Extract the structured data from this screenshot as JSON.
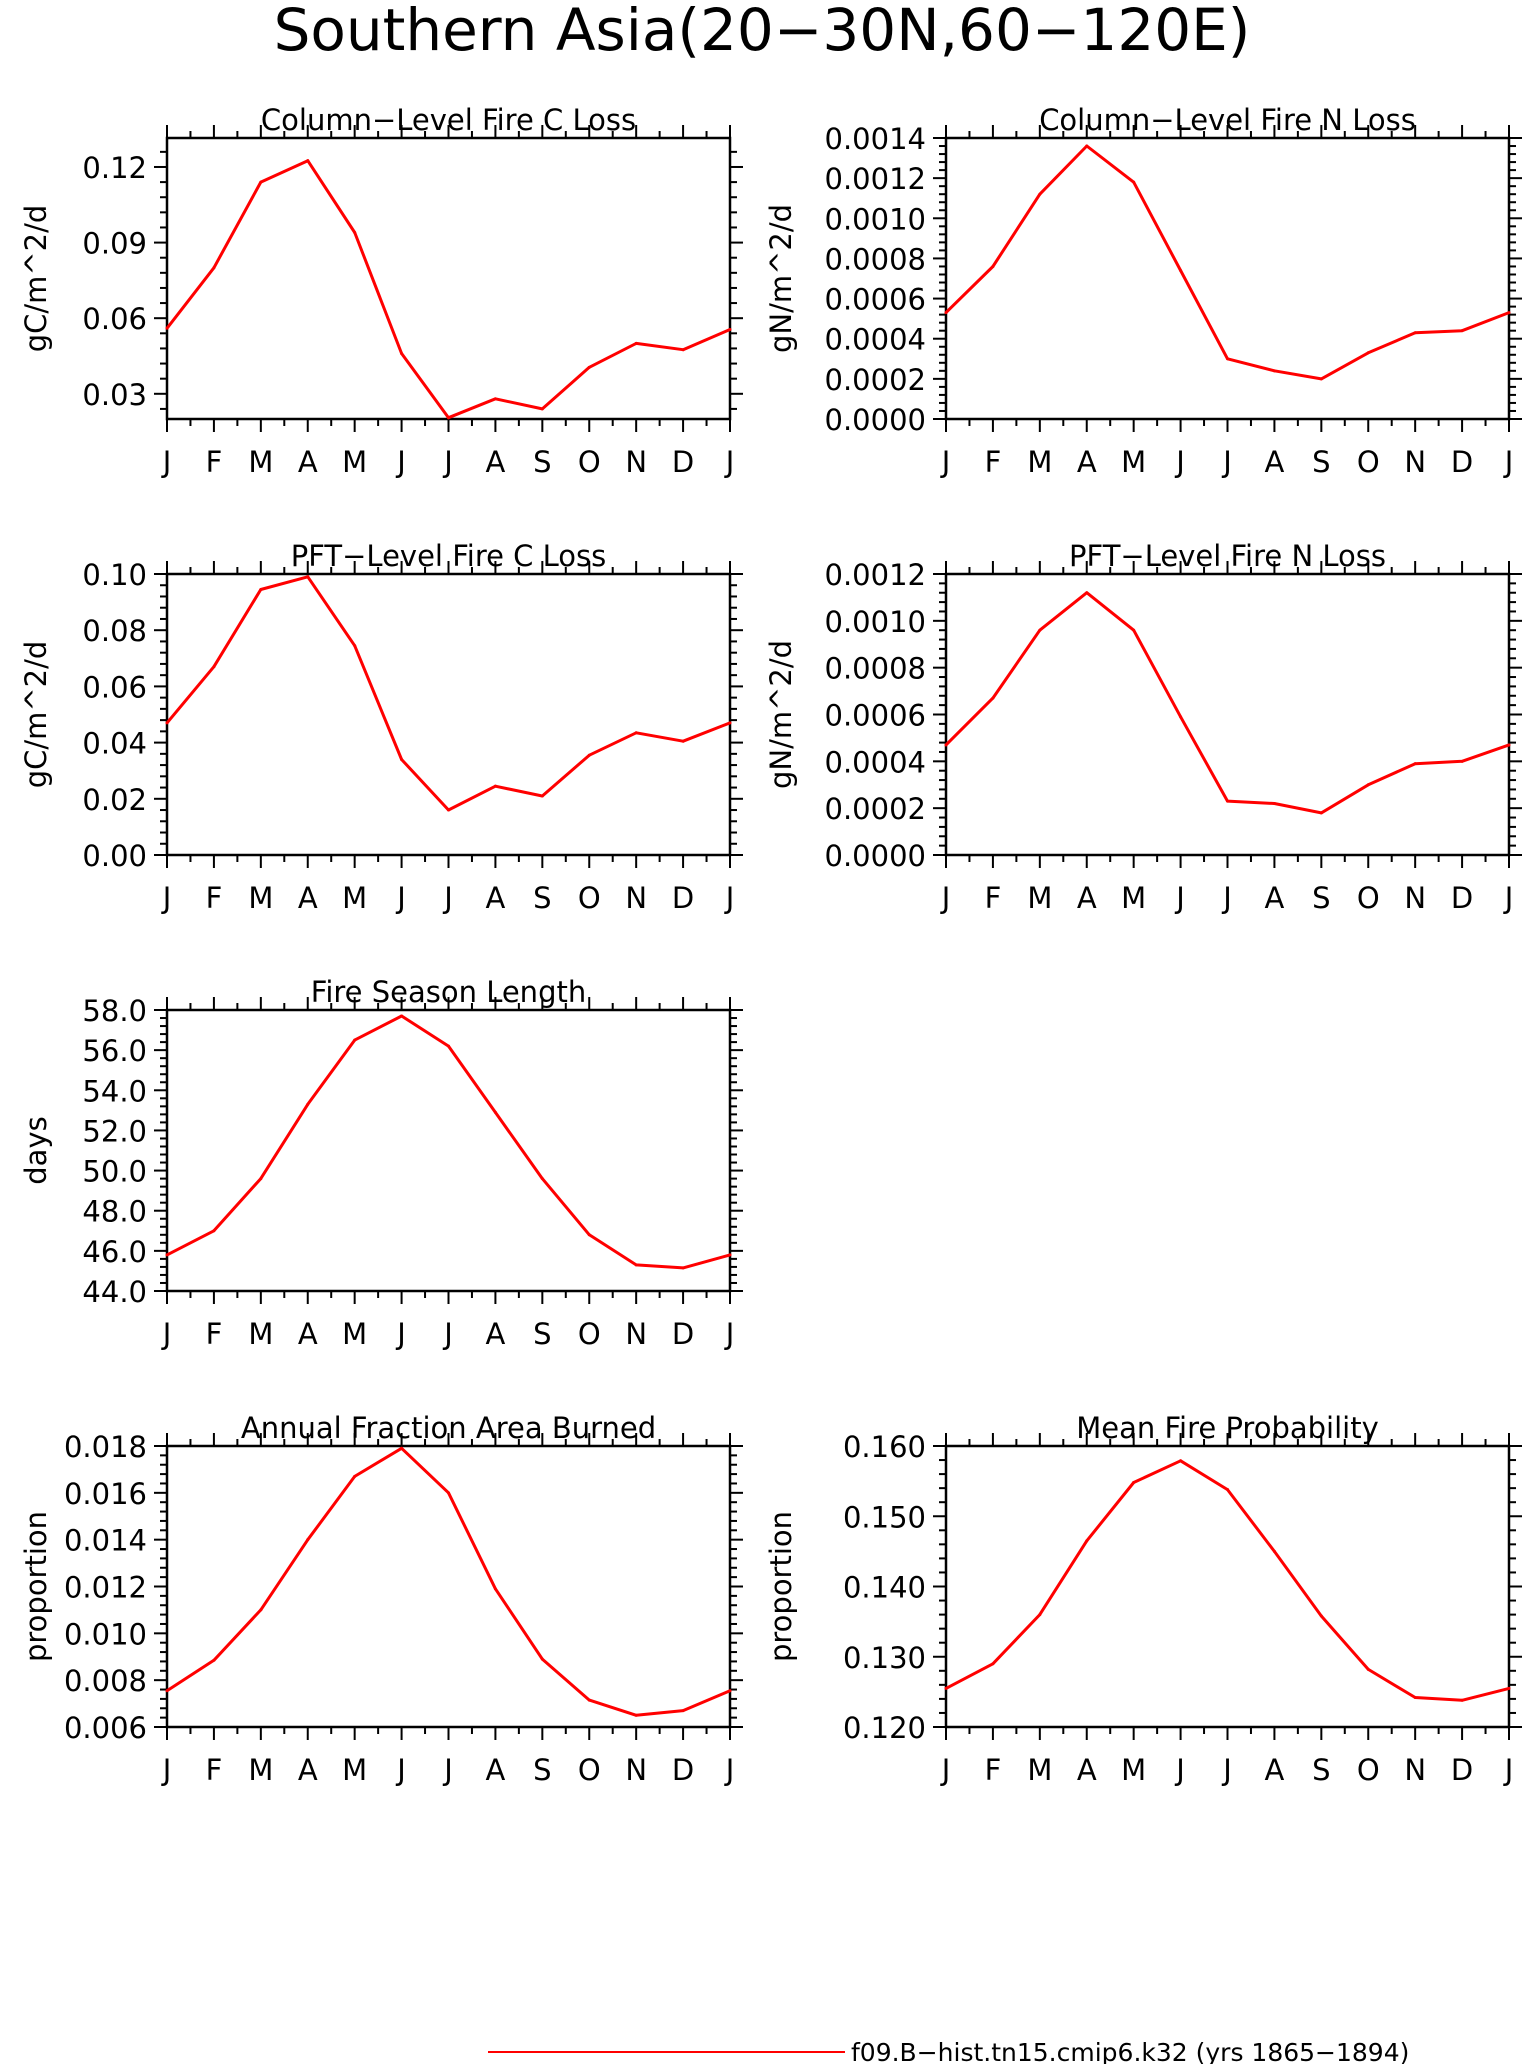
{
  "figure": {
    "title": "Southern Asia(20−30N,60−120E)",
    "line_color": "#ff0000",
    "legend_label": "f09.B−hist.tn15.cmip6.k32 (yrs 1865−1894)"
  },
  "chart_data": [
    {
      "id": "col-c",
      "type": "line",
      "title": "Column−Level Fire C Loss",
      "ylabel": "gC/m^2/d",
      "categories": [
        "J",
        "F",
        "M",
        "A",
        "M",
        "J",
        "J",
        "A",
        "S",
        "O",
        "N",
        "D",
        "J"
      ],
      "yticks": [
        "0.03",
        "0.06",
        "0.09",
        "0.12"
      ],
      "ytick_values": [
        0.03,
        0.06,
        0.09,
        0.12
      ],
      "ylim": [
        0.02,
        0.1315
      ],
      "series": [
        {
          "values": [
            0.056,
            0.08,
            0.114,
            0.1225,
            0.094,
            0.046,
            0.0205,
            0.028,
            0.024,
            0.0405,
            0.05,
            0.0475,
            0.0555
          ]
        }
      ]
    },
    {
      "id": "col-n",
      "type": "line",
      "title": "Column−Level Fire N Loss",
      "ylabel": "gN/m^2/d",
      "categories": [
        "J",
        "F",
        "M",
        "A",
        "M",
        "J",
        "J",
        "A",
        "S",
        "O",
        "N",
        "D",
        "J"
      ],
      "yticks": [
        "0.0000",
        "0.0002",
        "0.0004",
        "0.0006",
        "0.0008",
        "0.0010",
        "0.0012",
        "0.0014"
      ],
      "ytick_values": [
        0.0,
        0.0002,
        0.0004,
        0.0006,
        0.0008,
        0.001,
        0.0012,
        0.0014
      ],
      "ylim": [
        0.0,
        0.0014
      ],
      "series": [
        {
          "values": [
            0.00053,
            0.00076,
            0.00112,
            0.00136,
            0.00118,
            0.00074,
            0.0003,
            0.00024,
            0.0002,
            0.00033,
            0.00043,
            0.00044,
            0.00053
          ]
        }
      ]
    },
    {
      "id": "pft-c",
      "type": "line",
      "title": "PFT−Level Fire C Loss",
      "ylabel": "gC/m^2/d",
      "categories": [
        "J",
        "F",
        "M",
        "A",
        "M",
        "J",
        "J",
        "A",
        "S",
        "O",
        "N",
        "D",
        "J"
      ],
      "yticks": [
        "0.00",
        "0.02",
        "0.04",
        "0.06",
        "0.08",
        "0.10"
      ],
      "ytick_values": [
        0.0,
        0.02,
        0.04,
        0.06,
        0.08,
        0.1
      ],
      "ylim": [
        0.0,
        0.1
      ],
      "series": [
        {
          "values": [
            0.047,
            0.067,
            0.0945,
            0.099,
            0.0745,
            0.034,
            0.016,
            0.0245,
            0.021,
            0.0355,
            0.0435,
            0.0405,
            0.047
          ]
        }
      ]
    },
    {
      "id": "pft-n",
      "type": "line",
      "title": "PFT−Level Fire N Loss",
      "ylabel": "gN/m^2/d",
      "categories": [
        "J",
        "F",
        "M",
        "A",
        "M",
        "J",
        "J",
        "A",
        "S",
        "O",
        "N",
        "D",
        "J"
      ],
      "yticks": [
        "0.0000",
        "0.0002",
        "0.0004",
        "0.0006",
        "0.0008",
        "0.0010",
        "0.0012"
      ],
      "ytick_values": [
        0.0,
        0.0002,
        0.0004,
        0.0006,
        0.0008,
        0.001,
        0.0012
      ],
      "ylim": [
        0.0,
        0.0012
      ],
      "series": [
        {
          "values": [
            0.00047,
            0.00067,
            0.00096,
            0.00112,
            0.00096,
            0.00059,
            0.00023,
            0.00022,
            0.00018,
            0.0003,
            0.00039,
            0.0004,
            0.00047
          ]
        }
      ]
    },
    {
      "id": "season",
      "type": "line",
      "title": "Fire Season Length",
      "ylabel": "days",
      "categories": [
        "J",
        "F",
        "M",
        "A",
        "M",
        "J",
        "J",
        "A",
        "S",
        "O",
        "N",
        "D",
        "J"
      ],
      "yticks": [
        "44.0",
        "46.0",
        "48.0",
        "50.0",
        "52.0",
        "54.0",
        "56.0",
        "58.0"
      ],
      "ytick_values": [
        44,
        46,
        48,
        50,
        52,
        54,
        56,
        58
      ],
      "ylim": [
        44.0,
        58.0
      ],
      "series": [
        {
          "values": [
            45.8,
            47.0,
            49.6,
            53.3,
            56.5,
            57.7,
            56.2,
            52.9,
            49.6,
            46.8,
            45.3,
            45.15,
            45.8
          ]
        }
      ]
    },
    {
      "id": "afab",
      "type": "line",
      "title": "Annual Fraction Area Burned",
      "ylabel": "proportion",
      "categories": [
        "J",
        "F",
        "M",
        "A",
        "M",
        "J",
        "J",
        "A",
        "S",
        "O",
        "N",
        "D",
        "J"
      ],
      "yticks": [
        "0.006",
        "0.008",
        "0.010",
        "0.012",
        "0.014",
        "0.016",
        "0.018"
      ],
      "ytick_values": [
        0.006,
        0.008,
        0.01,
        0.012,
        0.014,
        0.016,
        0.018
      ],
      "ylim": [
        0.006,
        0.018
      ],
      "series": [
        {
          "values": [
            0.00755,
            0.00885,
            0.011,
            0.014,
            0.0167,
            0.0179,
            0.016,
            0.0119,
            0.0089,
            0.00715,
            0.0065,
            0.0067,
            0.00755
          ]
        }
      ]
    },
    {
      "id": "prob",
      "type": "line",
      "title": "Mean Fire Probability",
      "ylabel": "proportion",
      "categories": [
        "J",
        "F",
        "M",
        "A",
        "M",
        "J",
        "J",
        "A",
        "S",
        "O",
        "N",
        "D",
        "J"
      ],
      "yticks": [
        "0.120",
        "0.130",
        "0.140",
        "0.150",
        "0.160"
      ],
      "ytick_values": [
        0.12,
        0.13,
        0.14,
        0.15,
        0.16
      ],
      "ylim": [
        0.12,
        0.16
      ],
      "series": [
        {
          "values": [
            0.1255,
            0.129,
            0.136,
            0.1465,
            0.1548,
            0.1579,
            0.1538,
            0.145,
            0.1358,
            0.1282,
            0.1242,
            0.1238,
            0.1255
          ]
        }
      ]
    }
  ]
}
